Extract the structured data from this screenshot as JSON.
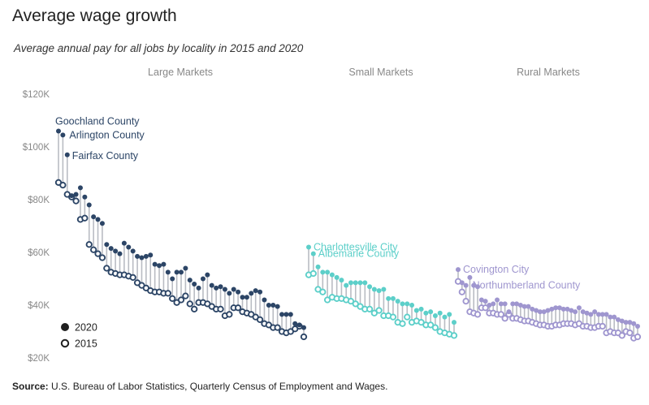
{
  "title": "Average wage growth",
  "subtitle": "Average annual pay for all jobs by locality in 2015 and 2020",
  "source_label": "Source:",
  "source_text": "U.S. Bureau of Labor Statistics, Quarterly Census of Employment and Wages.",
  "legend": {
    "item_2020": "2020",
    "item_2015": "2015"
  },
  "chart_data": {
    "type": "scatter",
    "ylim": [
      20000,
      120000
    ],
    "yticks": [
      20000,
      40000,
      60000,
      80000,
      100000,
      120000
    ],
    "ytick_labels": [
      "$20K",
      "$40K",
      "$60K",
      "$80K",
      "$100K",
      "$120K"
    ],
    "groups": [
      {
        "name": "Large Markets",
        "color": "#2c4566",
        "annotations": [
          {
            "label": "Goochland County",
            "index": 0
          },
          {
            "label": "Arlington County",
            "index": 1
          },
          {
            "label": "Fairfax County",
            "index": 2
          }
        ],
        "y2020": [
          106000,
          104500,
          97000,
          81500,
          82000,
          84500,
          81000,
          78000,
          73500,
          72500,
          71000,
          63000,
          61500,
          60500,
          59500,
          63500,
          62000,
          60500,
          58500,
          58000,
          58500,
          59000,
          55500,
          55000,
          55500,
          52500,
          50000,
          52500,
          52500,
          54000,
          49500,
          48000,
          46500,
          50000,
          51500,
          47500,
          46500,
          47000,
          46000,
          44500,
          46000,
          45000,
          43000,
          43000,
          44500,
          45500,
          45000,
          42000,
          40000,
          40000,
          39500,
          36500,
          36500,
          36500,
          33000,
          32500,
          31500
        ],
        "y2015": [
          86500,
          85500,
          82000,
          81000,
          79500,
          72500,
          73000,
          63000,
          61000,
          59500,
          58000,
          54000,
          52500,
          52000,
          51500,
          51500,
          51000,
          50500,
          48500,
          47500,
          46500,
          45500,
          45000,
          45000,
          44500,
          44500,
          42500,
          41000,
          42000,
          43500,
          40500,
          38500,
          41000,
          41000,
          40500,
          39500,
          38500,
          38500,
          36000,
          36500,
          39000,
          39000,
          37500,
          37000,
          36500,
          35500,
          34500,
          33000,
          32500,
          31500,
          31500,
          30000,
          29500,
          30000,
          31000,
          32000,
          28000
        ]
      },
      {
        "name": "Small Markets",
        "color": "#5ccfc9",
        "annotations": [
          {
            "label": "Charlottesville City",
            "index": 0
          },
          {
            "label": "Albemarle County",
            "index": 1
          }
        ],
        "y2020": [
          62000,
          59500,
          54500,
          52500,
          52500,
          51500,
          50500,
          49500,
          47500,
          48500,
          48500,
          48500,
          48500,
          47000,
          46000,
          45500,
          46000,
          42500,
          42500,
          41500,
          40500,
          40500,
          40000,
          38000,
          38500,
          37000,
          37500,
          36000,
          37000,
          35500,
          36500,
          33500
        ],
        "y2015": [
          51500,
          52000,
          46000,
          45000,
          42000,
          43000,
          42500,
          42500,
          42000,
          41500,
          40500,
          39500,
          38500,
          38500,
          37000,
          38000,
          36000,
          36000,
          35500,
          33500,
          33000,
          35500,
          33500,
          34000,
          33500,
          32500,
          32500,
          31500,
          30000,
          29500,
          29000,
          28500
        ]
      },
      {
        "name": "Rural Markets",
        "color": "#9f96cf",
        "annotations": [
          {
            "label": "Covington City",
            "index": 0
          },
          {
            "label": "Northumberland County",
            "index": 2
          }
        ],
        "y2020": [
          53500,
          48500,
          47500,
          50500,
          47500,
          47000,
          42000,
          41500,
          40000,
          40500,
          42000,
          40500,
          40500,
          37500,
          40500,
          40500,
          40000,
          39500,
          39500,
          38500,
          38000,
          37500,
          37500,
          38000,
          38500,
          39000,
          39000,
          38500,
          38500,
          38000,
          37500,
          39000,
          37500,
          37000,
          36500,
          37500,
          36500,
          36500,
          36500,
          35500,
          35500,
          34500,
          34000,
          33500,
          33500,
          33000,
          32000
        ],
        "y2015": [
          49000,
          45000,
          41500,
          37500,
          37000,
          36500,
          39000,
          39000,
          37000,
          37000,
          36500,
          36500,
          35000,
          36500,
          35000,
          35000,
          34500,
          34000,
          34000,
          33500,
          33000,
          32500,
          32500,
          32000,
          32000,
          32500,
          32500,
          33000,
          33000,
          33000,
          32500,
          33000,
          32000,
          32000,
          31500,
          31500,
          32000,
          32000,
          29500,
          30000,
          29500,
          29500,
          28500,
          30000,
          29500,
          27500,
          28000
        ]
      }
    ]
  }
}
